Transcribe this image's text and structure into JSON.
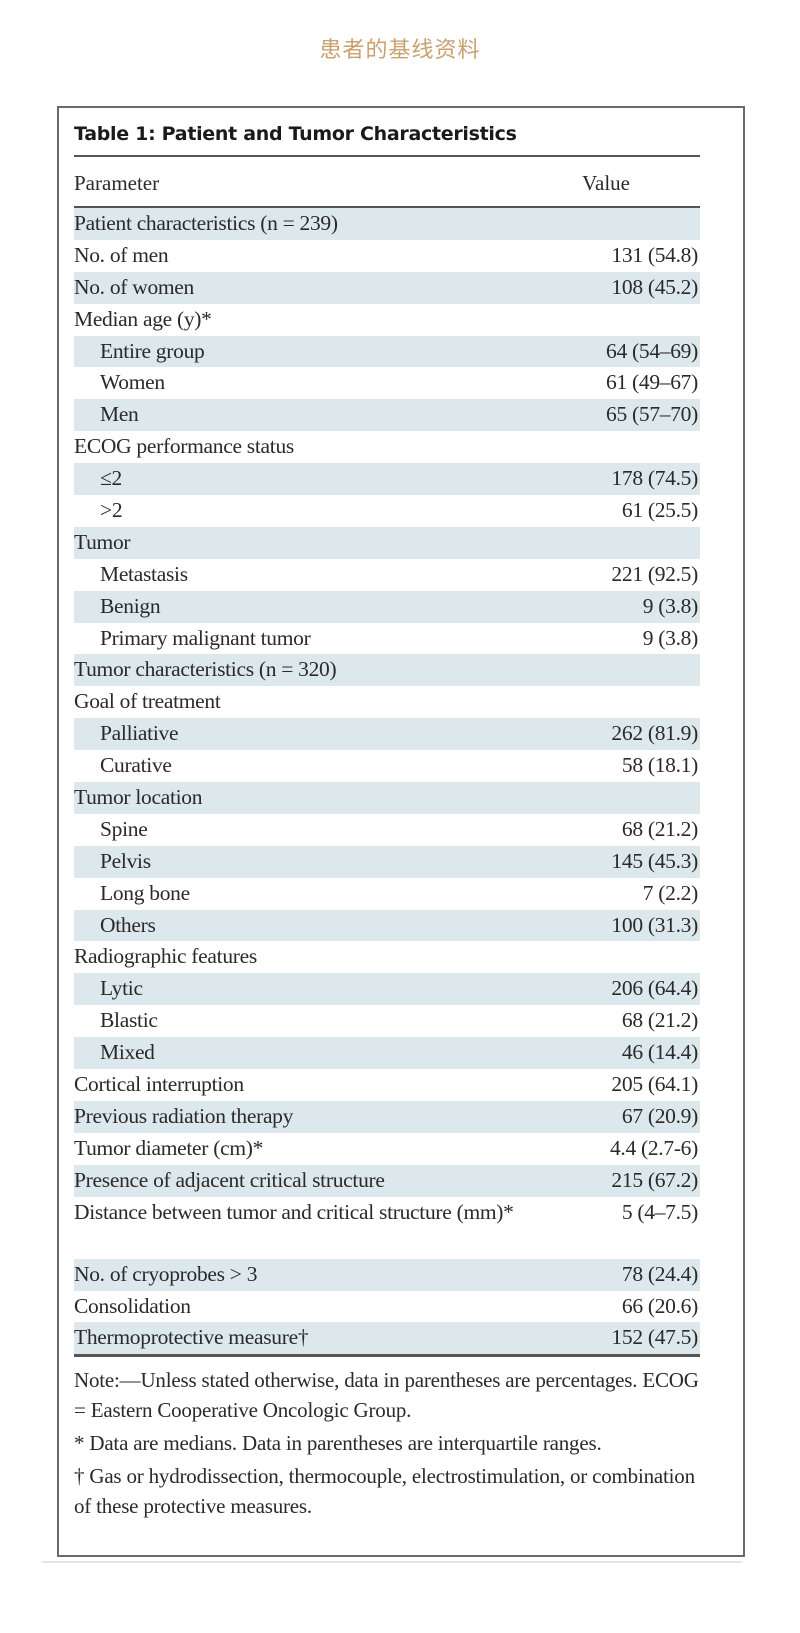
{
  "page_title": "患者的基线资料",
  "table": {
    "title": "Table 1: Patient and Tumor Characteristics",
    "headers": {
      "parameter": "Parameter",
      "value": "Value"
    },
    "rows": [
      {
        "parameter": "Patient characteristics (n = 239)",
        "value": "",
        "indent": false
      },
      {
        "parameter": "No. of men",
        "value": "131 (54.8)",
        "indent": false
      },
      {
        "parameter": "No. of women",
        "value": "108 (45.2)",
        "indent": false
      },
      {
        "parameter": "Median age (y)*",
        "value": "",
        "indent": false
      },
      {
        "parameter": "Entire group",
        "value": "64 (54–69)",
        "indent": true
      },
      {
        "parameter": "Women",
        "value": "61 (49–67)",
        "indent": true
      },
      {
        "parameter": "Men",
        "value": "65 (57–70)",
        "indent": true
      },
      {
        "parameter": "ECOG performance status",
        "value": "",
        "indent": false
      },
      {
        "parameter": "≤2",
        "value": "178 (74.5)",
        "indent": true
      },
      {
        "parameter": ">2",
        "value": "61 (25.5)",
        "indent": true
      },
      {
        "parameter": "Tumor",
        "value": "",
        "indent": false
      },
      {
        "parameter": "Metastasis",
        "value": "221 (92.5)",
        "indent": true
      },
      {
        "parameter": "Benign",
        "value": "9 (3.8)",
        "indent": true
      },
      {
        "parameter": "Primary malignant tumor",
        "value": "9 (3.8)",
        "indent": true
      },
      {
        "parameter": "Tumor characteristics (n = 320)",
        "value": "",
        "indent": false
      },
      {
        "parameter": "Goal of treatment",
        "value": "",
        "indent": false
      },
      {
        "parameter": "Palliative",
        "value": "262 (81.9)",
        "indent": true
      },
      {
        "parameter": "Curative",
        "value": "58 (18.1)",
        "indent": true
      },
      {
        "parameter": "Tumor location",
        "value": "",
        "indent": false
      },
      {
        "parameter": "Spine",
        "value": "68 (21.2)",
        "indent": true
      },
      {
        "parameter": "Pelvis",
        "value": "145 (45.3)",
        "indent": true
      },
      {
        "parameter": "Long bone",
        "value": "7 (2.2)",
        "indent": true
      },
      {
        "parameter": "Others",
        "value": "100 (31.3)",
        "indent": true
      },
      {
        "parameter": "Radiographic features",
        "value": "",
        "indent": false
      },
      {
        "parameter": "Lytic",
        "value": "206 (64.4)",
        "indent": true
      },
      {
        "parameter": "Blastic",
        "value": "68 (21.2)",
        "indent": true
      },
      {
        "parameter": "Mixed",
        "value": "46 (14.4)",
        "indent": true
      },
      {
        "parameter": "Cortical interruption",
        "value": "205 (64.1)",
        "indent": false
      },
      {
        "parameter": "Previous radiation therapy",
        "value": "67 (20.9)",
        "indent": false
      },
      {
        "parameter": "Tumor diameter (cm)*",
        "value": "4.4 (2.7-6)",
        "indent": false
      },
      {
        "parameter": "Presence of adjacent critical structure",
        "value": "215 (67.2)",
        "indent": false
      },
      {
        "parameter": "Distance between tumor and critical structure (mm)*",
        "value": "5 (4–7.5)",
        "indent": false,
        "double": true
      },
      {
        "parameter": "No. of cryoprobes > 3",
        "value": "78 (24.4)",
        "indent": false
      },
      {
        "parameter": "Consolidation",
        "value": "66 (20.6)",
        "indent": false
      },
      {
        "parameter": "Thermoprotective measure†",
        "value": "152 (47.5)",
        "indent": false
      }
    ],
    "notes": [
      "Note:—Unless stated otherwise, data in parentheses are percentages. ECOG = Eastern Cooperative Oncologic Group.",
      "* Data are medians. Data in parentheses are interquartile ranges.",
      "† Gas or hydrodissection, thermocouple, electrostimulation, or combination of these protective measures."
    ]
  },
  "colors": {
    "title": "#c9a06f",
    "row_shade": "#dce8ec",
    "rule": "#555555"
  }
}
